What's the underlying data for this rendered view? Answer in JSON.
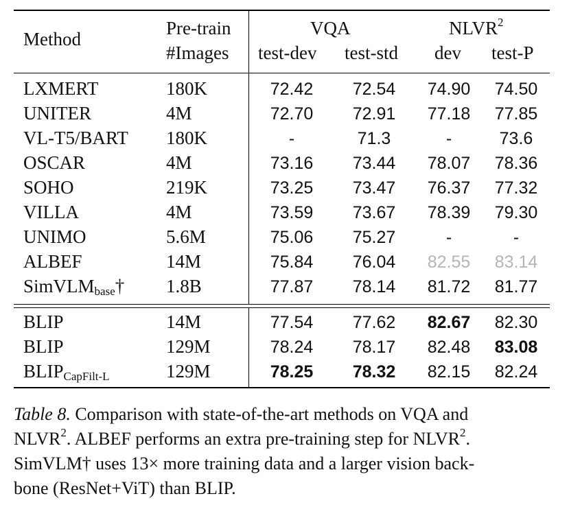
{
  "header": {
    "method": "Method",
    "pretrain_line1": "Pre-train",
    "pretrain_line2": "#Images",
    "vqa": "VQA",
    "nlvr": "NLVR",
    "nlvr_sup": "2",
    "vqa_test_dev": "test-dev",
    "vqa_test_std": "test-std",
    "nlvr_dev": "dev",
    "nlvr_test_p": "test-P"
  },
  "rows": [
    {
      "method": "LXMERT",
      "sub": "",
      "suffix": "",
      "images": "180K",
      "v1": "72.42",
      "v2": "72.54",
      "n1": "74.90",
      "n2": "74.50"
    },
    {
      "method": "UNITER",
      "sub": "",
      "suffix": "",
      "images": "4M",
      "v1": "72.70",
      "v2": "72.91",
      "n1": "77.18",
      "n2": "77.85"
    },
    {
      "method": "VL-T5/BART",
      "sub": "",
      "suffix": "",
      "images": "180K",
      "v1": "-",
      "v2": "71.3",
      "n1": "-",
      "n2": "73.6"
    },
    {
      "method": "OSCAR",
      "sub": "",
      "suffix": "",
      "images": "4M",
      "v1": "73.16",
      "v2": "73.44",
      "n1": "78.07",
      "n2": "78.36"
    },
    {
      "method": "SOHO",
      "sub": "",
      "suffix": "",
      "images": "219K",
      "v1": "73.25",
      "v2": "73.47",
      "n1": "76.37",
      "n2": "77.32"
    },
    {
      "method": "VILLA",
      "sub": "",
      "suffix": "",
      "images": "4M",
      "v1": "73.59",
      "v2": "73.67",
      "n1": "78.39",
      "n2": "79.30"
    },
    {
      "method": "UNIMO",
      "sub": "",
      "suffix": "",
      "images": "5.6M",
      "v1": "75.06",
      "v2": "75.27",
      "n1": "-",
      "n2": "-"
    },
    {
      "method": "ALBEF",
      "sub": "",
      "suffix": "",
      "images": "14M",
      "v1": "75.84",
      "v2": "76.04",
      "n1": "82.55",
      "n2": "83.14"
    },
    {
      "method": "SimVLM",
      "sub": "base",
      "suffix": "†",
      "images": "1.8B",
      "v1": "77.87",
      "v2": "78.14",
      "n1": "81.72",
      "n2": "81.77"
    },
    {
      "method": "BLIP",
      "sub": "",
      "suffix": "",
      "images": "14M",
      "v1": "77.54",
      "v2": "77.62",
      "n1": "82.67",
      "n2": "82.30"
    },
    {
      "method": "BLIP",
      "sub": "",
      "suffix": "",
      "images": "129M",
      "v1": "78.24",
      "v2": "78.17",
      "n1": "82.48",
      "n2": "83.08"
    },
    {
      "method": "BLIP",
      "sub": "CapFilt-L",
      "suffix": "",
      "images": "129M",
      "v1": "78.25",
      "v2": "78.32",
      "n1": "82.15",
      "n2": "82.24"
    }
  ],
  "colors": {
    "grey_values": "#b5b5b5"
  },
  "caption": {
    "label": "Table 8.",
    "line1": "Comparison with state-of-the-art methods on VQA and",
    "line2a": "NLVR",
    "line2sup": "2",
    "line2b": ". ALBEF performs an extra pre-training step for NLVR",
    "line2sup2": "2",
    "line2c": ".",
    "line3": "SimVLM† uses 13× more training data and a larger vision back-",
    "line4": "bone (ResNet+ViT) than BLIP."
  }
}
